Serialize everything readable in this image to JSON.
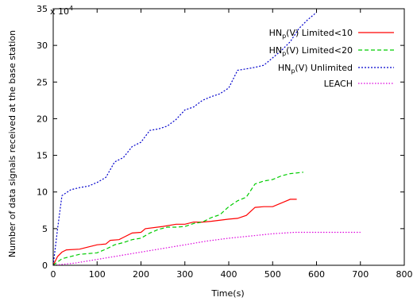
{
  "chart_data": {
    "type": "line",
    "xlabel": "Time(s)",
    "ylabel": "Number of data signals received at the base station",
    "y_multiplier_label": "x 10",
    "y_multiplier_exp": "4",
    "xlim": [
      0,
      800
    ],
    "ylim": [
      0,
      35
    ],
    "x_ticks": [
      "0",
      "100",
      "200",
      "300",
      "400",
      "500",
      "600",
      "700",
      "800"
    ],
    "y_ticks": [
      "0",
      "5",
      "10",
      "15",
      "20",
      "25",
      "30",
      "35"
    ],
    "legend_position": "top-right",
    "grid": false,
    "series": [
      {
        "name_parts": [
          "HN",
          "p",
          "(V) Limited<10"
        ],
        "color": "#ff0000",
        "dash": "solid",
        "points": [
          [
            0,
            0
          ],
          [
            10,
            1.2
          ],
          [
            20,
            1.8
          ],
          [
            30,
            2.1
          ],
          [
            60,
            2.2
          ],
          [
            80,
            2.5
          ],
          [
            100,
            2.8
          ],
          [
            120,
            2.9
          ],
          [
            130,
            3.4
          ],
          [
            150,
            3.5
          ],
          [
            160,
            3.8
          ],
          [
            180,
            4.4
          ],
          [
            200,
            4.5
          ],
          [
            210,
            5.0
          ],
          [
            250,
            5.3
          ],
          [
            280,
            5.6
          ],
          [
            300,
            5.6
          ],
          [
            320,
            5.9
          ],
          [
            340,
            5.9
          ],
          [
            360,
            6.0
          ],
          [
            400,
            6.3
          ],
          [
            420,
            6.4
          ],
          [
            440,
            6.8
          ],
          [
            460,
            7.9
          ],
          [
            480,
            8.0
          ],
          [
            500,
            8.0
          ],
          [
            520,
            8.5
          ],
          [
            540,
            9.0
          ],
          [
            555,
            9.0
          ]
        ]
      },
      {
        "name_parts": [
          "HN",
          "p",
          "(V) Limited<20"
        ],
        "color": "#00cc00",
        "dash": "5,3",
        "points": [
          [
            0,
            0
          ],
          [
            20,
            0.9
          ],
          [
            40,
            1.2
          ],
          [
            60,
            1.5
          ],
          [
            100,
            1.7
          ],
          [
            120,
            2.2
          ],
          [
            140,
            2.8
          ],
          [
            160,
            3.1
          ],
          [
            180,
            3.5
          ],
          [
            200,
            3.7
          ],
          [
            220,
            4.4
          ],
          [
            240,
            4.9
          ],
          [
            260,
            5.2
          ],
          [
            280,
            5.2
          ],
          [
            300,
            5.3
          ],
          [
            320,
            5.7
          ],
          [
            340,
            5.9
          ],
          [
            360,
            6.5
          ],
          [
            380,
            6.9
          ],
          [
            400,
            8.0
          ],
          [
            420,
            8.8
          ],
          [
            440,
            9.3
          ],
          [
            460,
            11.1
          ],
          [
            480,
            11.5
          ],
          [
            500,
            11.7
          ],
          [
            520,
            12.2
          ],
          [
            540,
            12.5
          ],
          [
            570,
            12.7
          ]
        ]
      },
      {
        "name_parts": [
          "HN",
          "p",
          "(V) Unlimited"
        ],
        "color": "#0000cc",
        "dash": "2,2",
        "points": [
          [
            0,
            0
          ],
          [
            10,
            5.0
          ],
          [
            20,
            9.5
          ],
          [
            40,
            10.3
          ],
          [
            60,
            10.6
          ],
          [
            80,
            10.8
          ],
          [
            100,
            11.3
          ],
          [
            120,
            12.0
          ],
          [
            140,
            14.1
          ],
          [
            160,
            14.7
          ],
          [
            180,
            16.2
          ],
          [
            200,
            16.8
          ],
          [
            220,
            18.4
          ],
          [
            240,
            18.6
          ],
          [
            260,
            19.0
          ],
          [
            280,
            19.9
          ],
          [
            300,
            21.2
          ],
          [
            320,
            21.6
          ],
          [
            340,
            22.5
          ],
          [
            360,
            23.0
          ],
          [
            380,
            23.4
          ],
          [
            400,
            24.2
          ],
          [
            420,
            26.6
          ],
          [
            440,
            26.8
          ],
          [
            460,
            27.0
          ],
          [
            480,
            27.3
          ],
          [
            500,
            28.3
          ],
          [
            520,
            29.3
          ],
          [
            540,
            30.5
          ],
          [
            560,
            32.3
          ],
          [
            580,
            33.5
          ],
          [
            600,
            34.5
          ]
        ]
      },
      {
        "name_parts": [
          "LEACH",
          "",
          ""
        ],
        "color": "#dd00dd",
        "dash": "1.5,2",
        "points": [
          [
            0,
            0
          ],
          [
            50,
            0.3
          ],
          [
            100,
            0.8
          ],
          [
            150,
            1.3
          ],
          [
            200,
            1.8
          ],
          [
            250,
            2.3
          ],
          [
            300,
            2.8
          ],
          [
            350,
            3.3
          ],
          [
            400,
            3.7
          ],
          [
            450,
            4.0
          ],
          [
            500,
            4.3
          ],
          [
            550,
            4.5
          ],
          [
            600,
            4.5
          ],
          [
            650,
            4.5
          ],
          [
            700,
            4.5
          ]
        ]
      }
    ]
  }
}
